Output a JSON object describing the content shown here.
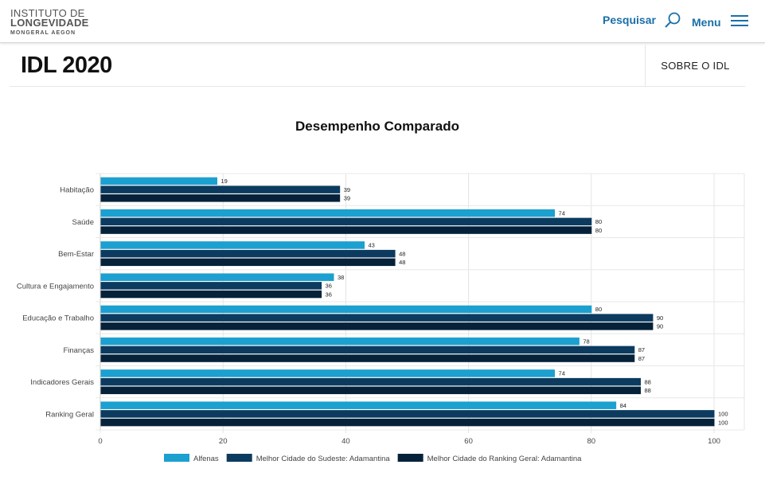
{
  "header": {
    "logo_line1": "INSTITUTO DE",
    "logo_line2": "LONGEVIDADE",
    "logo_line3": "MONGERAL AEGON",
    "search_label": "Pesquisar",
    "menu_label": "Menu"
  },
  "titlebar": {
    "title": "IDL 2020",
    "sobre_label": "SOBRE O IDL"
  },
  "colors": {
    "series1": "#1ba0d0",
    "series2": "#0c3b5f",
    "series3": "#06223a",
    "accent": "#1a6fa8"
  },
  "chart_data": {
    "type": "bar",
    "orientation": "horizontal",
    "title": "Desempenho Comparado",
    "categories": [
      "Habitação",
      "Saúde",
      "Bem-Estar",
      "Cultura e Engajamento",
      "Educação e Trabalho",
      "Finanças",
      "Indicadores Gerais",
      "Ranking Geral"
    ],
    "series": [
      {
        "name": "Alfenas",
        "values": [
          19,
          74,
          43,
          38,
          80,
          78,
          74,
          84
        ]
      },
      {
        "name": "Melhor Cidade do Sudeste: Adamantina",
        "values": [
          39,
          80,
          48,
          36,
          90,
          87,
          88,
          100
        ]
      },
      {
        "name": "Melhor Cidade do Ranking Geral: Adamantina",
        "values": [
          39,
          80,
          48,
          36,
          90,
          87,
          88,
          100
        ]
      }
    ],
    "xlim": [
      0,
      100
    ],
    "xticks": [
      0,
      20,
      40,
      60,
      80,
      100
    ],
    "legend_position": "bottom",
    "grid": true
  }
}
